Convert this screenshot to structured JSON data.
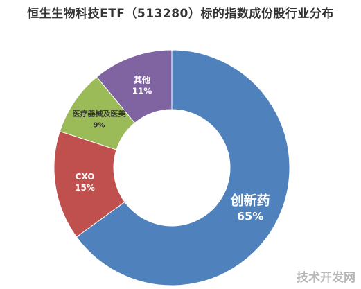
{
  "chart_data": {
    "type": "pie",
    "title": "恒生生物科技ETF（513280）标的指数成份股行业分布",
    "categories": [
      "创新药",
      "CXO",
      "医疗器械及医美",
      "其他"
    ],
    "values": [
      65,
      15,
      9,
      11
    ],
    "value_labels": [
      "65%",
      "15%",
      "9%",
      "11%"
    ],
    "colors": [
      "#4F81BD",
      "#C0504D",
      "#9BBB59",
      "#8064A2"
    ],
    "donut": true,
    "legend": "none"
  },
  "watermark": "技术开发网"
}
